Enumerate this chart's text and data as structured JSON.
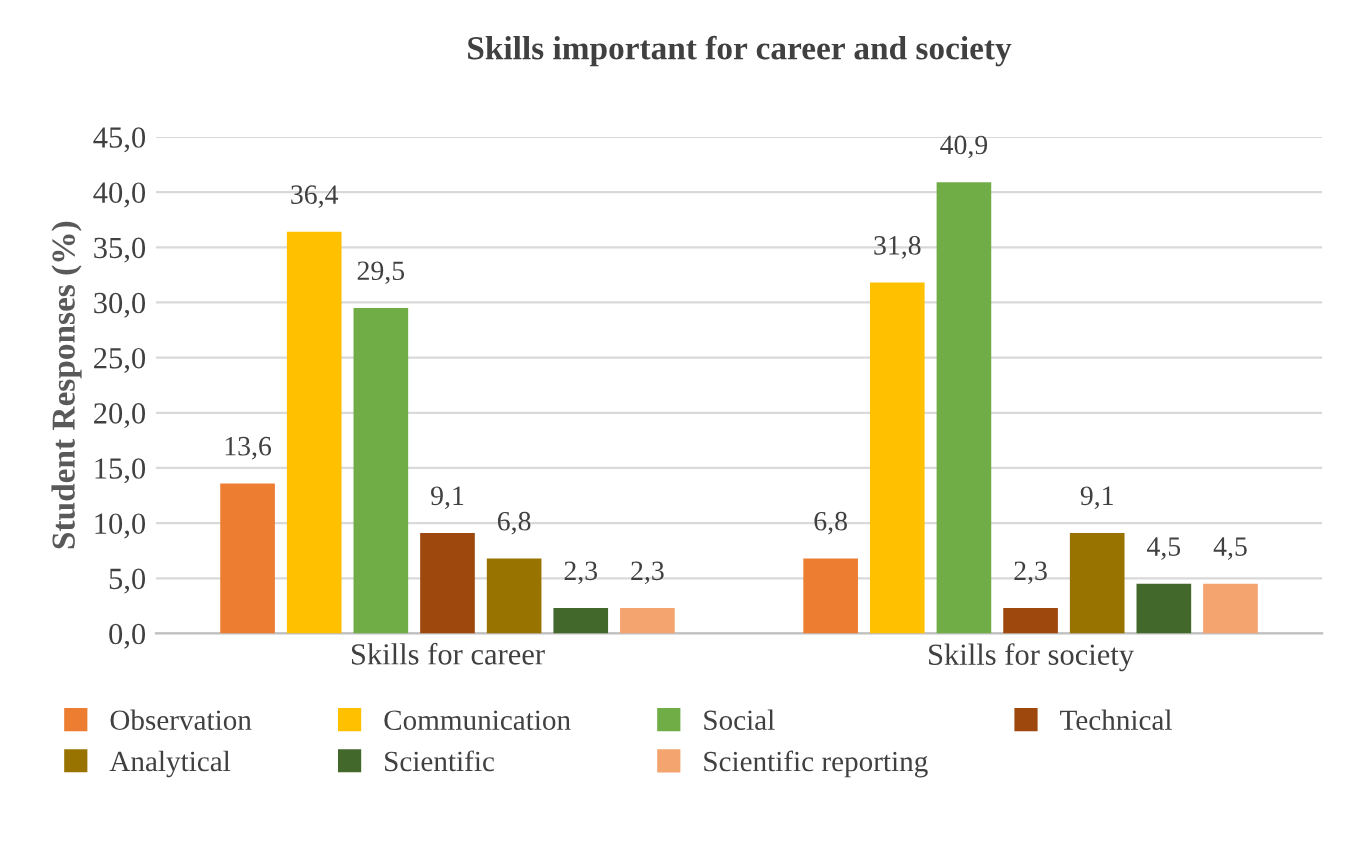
{
  "chart_data": {
    "type": "bar",
    "title": "Skills important for career and society",
    "ylabel": "Student Responses (%)",
    "categories": [
      "Skills for career",
      "Skills for society"
    ],
    "series": [
      {
        "name": "Observation",
        "color": "#ed7d31",
        "values": [
          13.6,
          6.8
        ],
        "value_labels": [
          "13,6",
          "6,8"
        ]
      },
      {
        "name": "Communication",
        "color": "#ffc000",
        "values": [
          36.4,
          31.8
        ],
        "value_labels": [
          "36,4",
          "31,8"
        ]
      },
      {
        "name": "Social",
        "color": "#70ad47",
        "values": [
          29.5,
          40.9
        ],
        "value_labels": [
          "29,5",
          "40,9"
        ]
      },
      {
        "name": "Technical",
        "color": "#9e480e",
        "values": [
          9.1,
          2.3
        ],
        "value_labels": [
          "9,1",
          "2,3"
        ]
      },
      {
        "name": "Analytical",
        "color": "#997300",
        "values": [
          6.8,
          9.1
        ],
        "value_labels": [
          "6,8",
          "9,1"
        ]
      },
      {
        "name": "Scientific",
        "color": "#43682b",
        "values": [
          2.3,
          4.5
        ],
        "value_labels": [
          "2,3",
          "4,5"
        ]
      },
      {
        "name": "Scientific reporting",
        "color": "#f4a46e",
        "values": [
          2.3,
          4.5
        ],
        "value_labels": [
          "2,3",
          "4,5"
        ]
      }
    ],
    "ylim": [
      0,
      45
    ],
    "yticks": [
      {
        "value": 0,
        "label": "0,0"
      },
      {
        "value": 5,
        "label": "5,0"
      },
      {
        "value": 10,
        "label": "10,0"
      },
      {
        "value": 15,
        "label": "15,0"
      },
      {
        "value": 20,
        "label": "20,0"
      },
      {
        "value": 25,
        "label": "25,0"
      },
      {
        "value": 30,
        "label": "30,0"
      },
      {
        "value": 35,
        "label": "35,0"
      },
      {
        "value": 40,
        "label": "40,0"
      },
      {
        "value": 45,
        "label": "45,0"
      }
    ],
    "grid": "y",
    "legend": "bottom"
  }
}
